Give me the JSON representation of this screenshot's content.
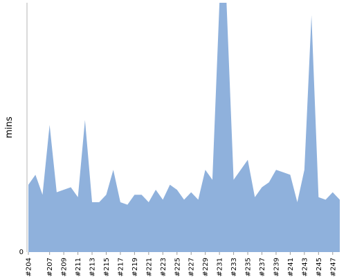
{
  "chart_data": {
    "type": "area",
    "title": "",
    "xlabel": "",
    "ylabel": "mins",
    "y_tick_labels": [
      "0"
    ],
    "ylim": [
      0,
      100
    ],
    "grid": false,
    "color": "#8fb1dc",
    "x": [
      "#204",
      "#205",
      "#206",
      "#207",
      "#208",
      "#209",
      "#210",
      "#211",
      "#212",
      "#213",
      "#214",
      "#215",
      "#216",
      "#217",
      "#218",
      "#219",
      "#220",
      "#221",
      "#222",
      "#223",
      "#224",
      "#225",
      "#226",
      "#227",
      "#228",
      "#229",
      "#230",
      "#231",
      "#232",
      "#233",
      "#234",
      "#235",
      "#236",
      "#237",
      "#238",
      "#239",
      "#240",
      "#241",
      "#242",
      "#243",
      "#244",
      "#245",
      "#246",
      "#247",
      "#248"
    ],
    "x_tick_labels": [
      "#204",
      "#207",
      "#209",
      "#211",
      "#213",
      "#215",
      "#217",
      "#219",
      "#221",
      "#223",
      "#225",
      "#227",
      "#229",
      "#231",
      "#233",
      "#235",
      "#237",
      "#239",
      "#241",
      "#243",
      "#245",
      "#247"
    ],
    "values": [
      27,
      31,
      23,
      51,
      24,
      25,
      26,
      22,
      53,
      20,
      20,
      23,
      33,
      20,
      19,
      23,
      23,
      20,
      25,
      21,
      27,
      25,
      21,
      24,
      21,
      33,
      29,
      100,
      100,
      29,
      33,
      37,
      22,
      26,
      28,
      33,
      32,
      31,
      20,
      33,
      95,
      22,
      21,
      24,
      21
    ]
  }
}
